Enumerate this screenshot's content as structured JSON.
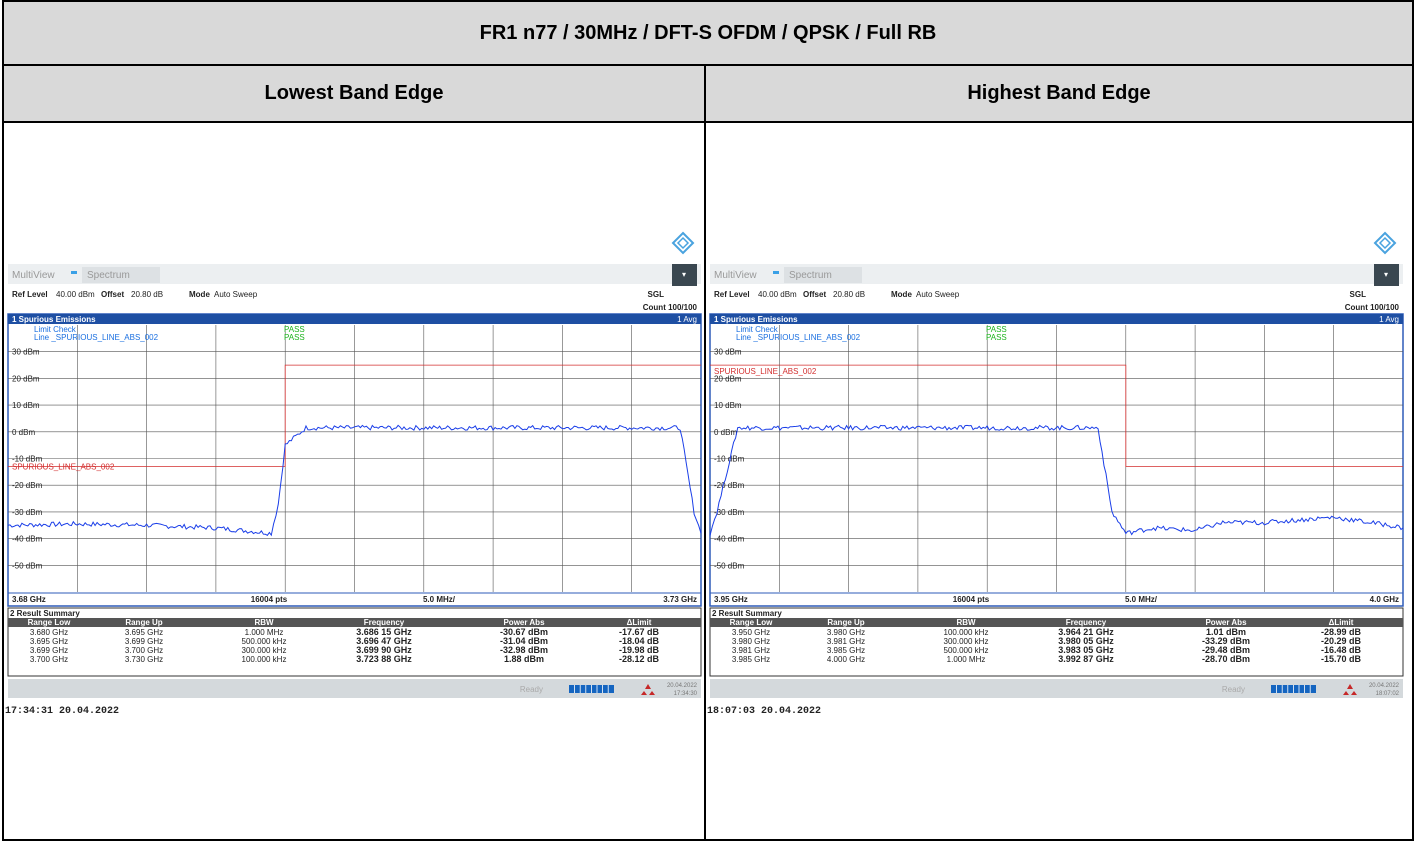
{
  "title": "FR1 n77 / 30MHz / DFT-S OFDM / QPSK / Full RB",
  "panels": [
    {
      "heading": "Lowest Band Edge",
      "toolbar": {
        "app": "MultiView",
        "tab": "Spectrum"
      },
      "status": {
        "ref_level_label": "Ref Level",
        "ref_level": "40.00 dBm",
        "offset_label": "Offset",
        "offset": "20.80 dB",
        "mode_label": "Mode",
        "mode": "Auto Sweep",
        "sgl": "SGL",
        "count": "Count 100/100"
      },
      "trace_title": "1 Spurious Emissions",
      "avg": "1 Avg",
      "limit_check_label": "Limit Check",
      "limit_check_result": "PASS",
      "line_label": "Line _SPURIOUS_LINE_ABS_002",
      "line_result": "PASS",
      "limit_name": "SPURIOUS_LINE_ABS_002",
      "footer": {
        "start": "3.68 GHz",
        "pts": "16004 pts",
        "div": "5.0 MHz/",
        "stop": "3.73 GHz"
      },
      "summary_title": "2 Result Summary",
      "columns": [
        "Range Low",
        "Range Up",
        "RBW",
        "Frequency",
        "Power Abs",
        "ΔLimit"
      ],
      "rows": [
        [
          "3.680 GHz",
          "3.695 GHz",
          "1.000 MHz",
          "3.686 15 GHz",
          "-30.67 dBm",
          "-17.67 dB"
        ],
        [
          "3.695 GHz",
          "3.699 GHz",
          "500.000 kHz",
          "3.696 47 GHz",
          "-31.04 dBm",
          "-18.04 dB"
        ],
        [
          "3.699 GHz",
          "3.700 GHz",
          "300.000 kHz",
          "3.699 90 GHz",
          "-32.98 dBm",
          "-19.98 dB"
        ],
        [
          "3.700 GHz",
          "3.730 GHz",
          "100.000 kHz",
          "3.723 88 GHz",
          "1.88 dBm",
          "-28.12 dB"
        ]
      ],
      "ready": "Ready",
      "date_small": "20.04.2022",
      "time_small": "17:34:30",
      "timestamp": "17:34:31  20.04.2022"
    },
    {
      "heading": "Highest Band Edge",
      "toolbar": {
        "app": "MultiView",
        "tab": "Spectrum"
      },
      "status": {
        "ref_level_label": "Ref Level",
        "ref_level": "40.00 dBm",
        "offset_label": "Offset",
        "offset": "20.80 dB",
        "mode_label": "Mode",
        "mode": "Auto Sweep",
        "sgl": "SGL",
        "count": "Count 100/100"
      },
      "trace_title": "1 Spurious Emissions",
      "avg": "1 Avg",
      "limit_check_label": "Limit Check",
      "limit_check_result": "PASS",
      "line_label": "Line _SPURIOUS_LINE_ABS_002",
      "line_result": "PASS",
      "limit_name": "SPURIOUS_LINE_ABS_002",
      "footer": {
        "start": "3.95 GHz",
        "pts": "16004 pts",
        "div": "5.0 MHz/",
        "stop": "4.0 GHz"
      },
      "summary_title": "2 Result Summary",
      "columns": [
        "Range Low",
        "Range Up",
        "RBW",
        "Frequency",
        "Power Abs",
        "ΔLimit"
      ],
      "rows": [
        [
          "3.950 GHz",
          "3.980 GHz",
          "100.000 kHz",
          "3.964 21 GHz",
          "1.01 dBm",
          "-28.99 dB"
        ],
        [
          "3.980 GHz",
          "3.981 GHz",
          "300.000 kHz",
          "3.980 05 GHz",
          "-33.29 dBm",
          "-20.29 dB"
        ],
        [
          "3.981 GHz",
          "3.985 GHz",
          "500.000 kHz",
          "3.983 05 GHz",
          "-29.48 dBm",
          "-16.48 dB"
        ],
        [
          "3.985 GHz",
          "4.000 GHz",
          "1.000 MHz",
          "3.992 87 GHz",
          "-28.70 dBm",
          "-15.70 dB"
        ]
      ],
      "ready": "Ready",
      "date_small": "20.04.2022",
      "time_small": "18:07:02",
      "timestamp": "18:07:03  20.04.2022"
    }
  ],
  "chart_data": [
    {
      "type": "line",
      "xunit": "GHz",
      "yunit": "dBm",
      "xlim": [
        3.68,
        3.73
      ],
      "ylim": [
        -60,
        40
      ],
      "yticks": [
        "30 dBm",
        "20 dBm",
        "10 dBm",
        "0 dBm",
        "-10 dBm",
        "-20 dBm",
        "-30 dBm",
        "-40 dBm",
        "-50 dBm"
      ],
      "grid": true,
      "limit_line": {
        "x": [
          3.68,
          3.7,
          3.7,
          3.73
        ],
        "y": [
          -13,
          -13,
          25,
          25
        ]
      },
      "trace": {
        "x": [
          3.68,
          3.685,
          3.69,
          3.695,
          3.697,
          3.699,
          3.6995,
          3.7,
          3.7015,
          3.705,
          3.71,
          3.715,
          3.72,
          3.725,
          3.7285,
          3.7295,
          3.73
        ],
        "y": [
          -35,
          -34.5,
          -35,
          -36,
          -37,
          -38,
          -27,
          -5,
          1.5,
          1.5,
          1.5,
          1.5,
          1.5,
          1.5,
          1.5,
          -30,
          -38
        ]
      }
    },
    {
      "type": "line",
      "xunit": "GHz",
      "yunit": "dBm",
      "xlim": [
        3.95,
        4.0
      ],
      "ylim": [
        -60,
        40
      ],
      "yticks": [
        "30 dBm",
        "20 dBm",
        "10 dBm",
        "0 dBm",
        "-10 dBm",
        "-20 dBm",
        "-30 dBm",
        "-40 dBm",
        "-50 dBm"
      ],
      "grid": true,
      "limit_line": {
        "x": [
          3.95,
          3.98,
          3.98,
          4.0
        ],
        "y": [
          25,
          25,
          -13,
          -13
        ]
      },
      "trace": {
        "x": [
          3.95,
          3.9505,
          3.952,
          3.96,
          3.97,
          3.978,
          3.979,
          3.98,
          3.982,
          3.985,
          3.987,
          3.99,
          3.995,
          3.999,
          4.0
        ],
        "y": [
          -38,
          -30,
          1.5,
          1.5,
          1.5,
          1.5,
          -30,
          -38,
          -36,
          -37,
          -34,
          -34,
          -32,
          -35,
          -36
        ]
      }
    }
  ]
}
